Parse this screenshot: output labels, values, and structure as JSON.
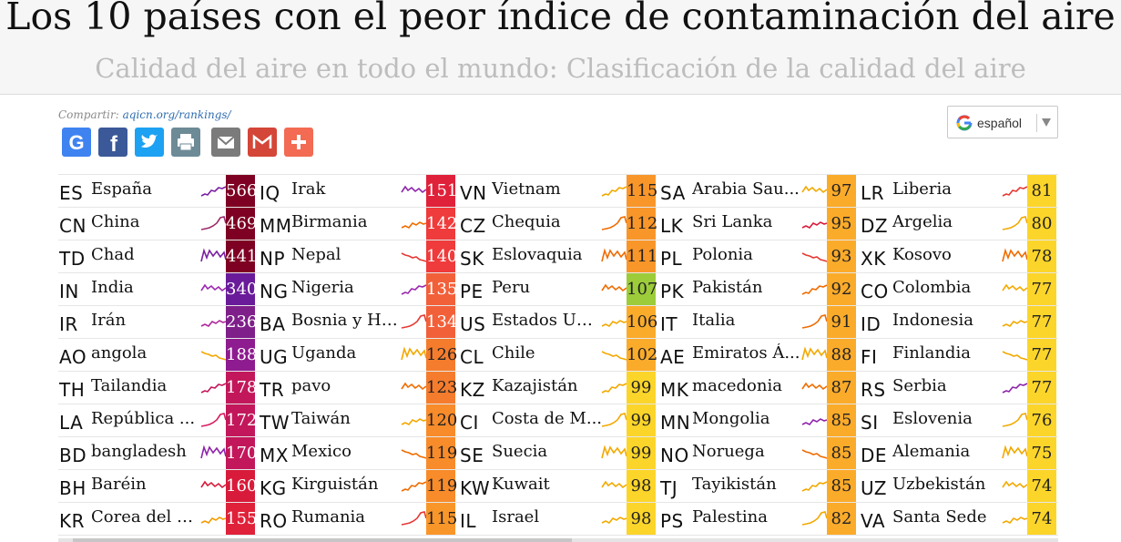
{
  "header": {
    "title": "Los 10 países con el peor índice de contaminación del aire",
    "subtitle": "Calidad del aire en todo el mundo: Clasificación de la calidad del aire"
  },
  "share": {
    "label": "Compartir:",
    "link": "aqicn.org/rankings/",
    "icons": [
      {
        "name": "google-share-icon",
        "color": "#3f83f1",
        "glyph": "G"
      },
      {
        "name": "facebook-icon",
        "color": "#3b5998",
        "glyph": "f"
      },
      {
        "name": "twitter-icon",
        "color": "#1da1f2",
        "glyph": "bird"
      },
      {
        "name": "print-icon",
        "color": "#6d8a97",
        "glyph": "printer"
      },
      {
        "name": "email-icon",
        "color": "#7b7b7b",
        "glyph": "envelope"
      },
      {
        "name": "gmail-icon",
        "color": "#d44638",
        "glyph": "M"
      },
      {
        "name": "more-share-icon",
        "color": "#f26b52",
        "glyph": "+"
      }
    ]
  },
  "language": {
    "label": "español"
  },
  "rankings": [
    [
      {
        "code": "ES",
        "name": "España",
        "value": "566",
        "bg": "#7e0023",
        "fg": "#fff",
        "spark": "#7a1fa2"
      },
      {
        "code": "CN",
        "name": "China",
        "value": "469",
        "bg": "#7e0023",
        "fg": "#fff",
        "spark": "#9c2a6a"
      },
      {
        "code": "TD",
        "name": "Chad",
        "value": "441",
        "bg": "#7e0023",
        "fg": "#fff",
        "spark": "#7a1fa2"
      },
      {
        "code": "IN",
        "name": "India",
        "value": "340",
        "bg": "#6a1b9a",
        "fg": "#fff",
        "spark": "#9c27b0"
      },
      {
        "code": "IR",
        "name": "Irán",
        "value": "236",
        "bg": "#7e1f8a",
        "fg": "#fff",
        "spark": "#b0269c"
      },
      {
        "code": "AO",
        "name": "angola",
        "value": "188",
        "bg": "#8e1b8f",
        "fg": "#fff",
        "spark": "#f2a900"
      },
      {
        "code": "TH",
        "name": "Tailandia",
        "value": "178",
        "bg": "#c2185b",
        "fg": "#fff",
        "spark": "#c2185b"
      },
      {
        "code": "LA",
        "name": "República ...",
        "value": "172",
        "bg": "#c2185b",
        "fg": "#fff",
        "spark": "#d81b60"
      },
      {
        "code": "BD",
        "name": "bangladesh",
        "value": "170",
        "bg": "#c2185b",
        "fg": "#fff",
        "spark": "#8e24aa"
      },
      {
        "code": "BH",
        "name": "Baréin",
        "value": "160",
        "bg": "#d81b3a",
        "fg": "#fff",
        "spark": "#d81b3a"
      },
      {
        "code": "KR",
        "name": "Corea del Sur",
        "value": "155",
        "bg": "#e0213a",
        "fg": "#fff",
        "spark": "#f59b00"
      }
    ],
    [
      {
        "code": "IQ",
        "name": "Irak",
        "value": "151",
        "bg": "#e0213a",
        "fg": "#fff",
        "spark": "#8e24aa"
      },
      {
        "code": "MM",
        "name": "Birmania",
        "value": "142",
        "bg": "#ef3b3b",
        "fg": "#fff",
        "spark": "#ef6c00"
      },
      {
        "code": "NP",
        "name": "Nepal",
        "value": "140",
        "bg": "#ef3b3b",
        "fg": "#fff",
        "spark": "#e53935"
      },
      {
        "code": "NG",
        "name": "Nigeria",
        "value": "135",
        "bg": "#f2603a",
        "fg": "#fff",
        "spark": "#9c27b0"
      },
      {
        "code": "BA",
        "name": "Bosnia y He...",
        "value": "134",
        "bg": "#f2603a",
        "fg": "#fff",
        "spark": "#e53935"
      },
      {
        "code": "UG",
        "name": "Uganda",
        "value": "126",
        "bg": "#f57c2c",
        "fg": "#222",
        "spark": "#f2a900"
      },
      {
        "code": "TR",
        "name": "pavo",
        "value": "123",
        "bg": "#f57c2c",
        "fg": "#222",
        "spark": "#ef6c00"
      },
      {
        "code": "TW",
        "name": "Taiwán",
        "value": "120",
        "bg": "#f88b2a",
        "fg": "#222",
        "spark": "#f2a900"
      },
      {
        "code": "MX",
        "name": "Mexico",
        "value": "119",
        "bg": "#f88b2a",
        "fg": "#222",
        "spark": "#ef6c00"
      },
      {
        "code": "KG",
        "name": "Kirguistán",
        "value": "119",
        "bg": "#f88b2a",
        "fg": "#222",
        "spark": "#ef6c00"
      },
      {
        "code": "RO",
        "name": "Rumania",
        "value": "115",
        "bg": "#f9962a",
        "fg": "#222",
        "spark": "#e53935"
      }
    ],
    [
      {
        "code": "VN",
        "name": "Vietnam",
        "value": "115",
        "bg": "#f9962a",
        "fg": "#222",
        "spark": "#f2a900"
      },
      {
        "code": "CZ",
        "name": "Chequia",
        "value": "112",
        "bg": "#f9962a",
        "fg": "#222",
        "spark": "#ef6c00"
      },
      {
        "code": "SK",
        "name": "Eslovaquia",
        "value": "111",
        "bg": "#f9962a",
        "fg": "#222",
        "spark": "#ef6c00"
      },
      {
        "code": "PE",
        "name": "Peru",
        "value": "107",
        "bg": "#9ccc3a",
        "fg": "#222",
        "spark": "#ef6c00"
      },
      {
        "code": "US",
        "name": "Estados Uni...",
        "value": "106",
        "bg": "#fbab2a",
        "fg": "#222",
        "spark": "#f2a900"
      },
      {
        "code": "CL",
        "name": "Chile",
        "value": "102",
        "bg": "#fbab2a",
        "fg": "#222",
        "spark": "#f2a900"
      },
      {
        "code": "KZ",
        "name": "Kazajistán",
        "value": "99",
        "bg": "#fcd52a",
        "fg": "#222",
        "spark": "#f2a900"
      },
      {
        "code": "CI",
        "name": "Costa de M...",
        "value": "99",
        "bg": "#fcd52a",
        "fg": "#222",
        "spark": "#f2a900"
      },
      {
        "code": "SE",
        "name": "Suecia",
        "value": "99",
        "bg": "#fcd52a",
        "fg": "#222",
        "spark": "#f2a900"
      },
      {
        "code": "KW",
        "name": "Kuwait",
        "value": "98",
        "bg": "#fcd52a",
        "fg": "#222",
        "spark": "#f2a900"
      },
      {
        "code": "IL",
        "name": "Israel",
        "value": "98",
        "bg": "#fcd52a",
        "fg": "#222",
        "spark": "#f2a900"
      }
    ],
    [
      {
        "code": "SA",
        "name": "Arabia Sau...",
        "value": "97",
        "bg": "#fbab2a",
        "fg": "#222",
        "spark": "#f2a900"
      },
      {
        "code": "LK",
        "name": "Sri Lanka",
        "value": "95",
        "bg": "#fbab2a",
        "fg": "#222",
        "spark": "#d81b3a"
      },
      {
        "code": "PL",
        "name": "Polonia",
        "value": "93",
        "bg": "#fbab2a",
        "fg": "#222",
        "spark": "#e53935"
      },
      {
        "code": "PK",
        "name": "Pakistán",
        "value": "92",
        "bg": "#fbab2a",
        "fg": "#222",
        "spark": "#ef6c00"
      },
      {
        "code": "IT",
        "name": "Italia",
        "value": "91",
        "bg": "#fbab2a",
        "fg": "#222",
        "spark": "#ef6c00"
      },
      {
        "code": "AE",
        "name": "Emiratos Á...",
        "value": "88",
        "bg": "#fbab2a",
        "fg": "#222",
        "spark": "#f2a900"
      },
      {
        "code": "MK",
        "name": "macedonia",
        "value": "87",
        "bg": "#fbab2a",
        "fg": "#222",
        "spark": "#ef6c00"
      },
      {
        "code": "MN",
        "name": "Mongolia",
        "value": "85",
        "bg": "#fbab2a",
        "fg": "#222",
        "spark": "#8e24aa"
      },
      {
        "code": "NO",
        "name": "Noruega",
        "value": "85",
        "bg": "#fbab2a",
        "fg": "#222",
        "spark": "#ef6c00"
      },
      {
        "code": "TJ",
        "name": "Tayikistán",
        "value": "85",
        "bg": "#fbab2a",
        "fg": "#222",
        "spark": "#f2a900"
      },
      {
        "code": "PS",
        "name": "Palestina",
        "value": "82",
        "bg": "#fbab2a",
        "fg": "#222",
        "spark": "#f2a900"
      }
    ],
    [
      {
        "code": "LR",
        "name": "Liberia",
        "value": "81",
        "bg": "#fcd52a",
        "fg": "#222",
        "spark": "#e53935"
      },
      {
        "code": "DZ",
        "name": "Argelia",
        "value": "80",
        "bg": "#fcd52a",
        "fg": "#222",
        "spark": "#f2a900"
      },
      {
        "code": "XK",
        "name": "Kosovo",
        "value": "78",
        "bg": "#fcd52a",
        "fg": "#222",
        "spark": "#ef6c00"
      },
      {
        "code": "CO",
        "name": "Colombia",
        "value": "77",
        "bg": "#fcd52a",
        "fg": "#222",
        "spark": "#f2a900"
      },
      {
        "code": "ID",
        "name": "Indonesia",
        "value": "77",
        "bg": "#fcd52a",
        "fg": "#222",
        "spark": "#f2a900"
      },
      {
        "code": "FI",
        "name": "Finlandia",
        "value": "77",
        "bg": "#fcd52a",
        "fg": "#222",
        "spark": "#f2a900"
      },
      {
        "code": "RS",
        "name": "Serbia",
        "value": "77",
        "bg": "#fcd52a",
        "fg": "#222",
        "spark": "#8e24aa"
      },
      {
        "code": "SI",
        "name": "Eslovenia",
        "value": "76",
        "bg": "#fcd52a",
        "fg": "#222",
        "spark": "#f2a900"
      },
      {
        "code": "DE",
        "name": "Alemania",
        "value": "75",
        "bg": "#fcd52a",
        "fg": "#222",
        "spark": "#f2a900"
      },
      {
        "code": "UZ",
        "name": "Uzbekistán",
        "value": "74",
        "bg": "#fcd52a",
        "fg": "#222",
        "spark": "#f2a900"
      },
      {
        "code": "VA",
        "name": "Santa Sede",
        "value": "74",
        "bg": "#fcd52a",
        "fg": "#222",
        "spark": "#f2a900"
      }
    ]
  ]
}
